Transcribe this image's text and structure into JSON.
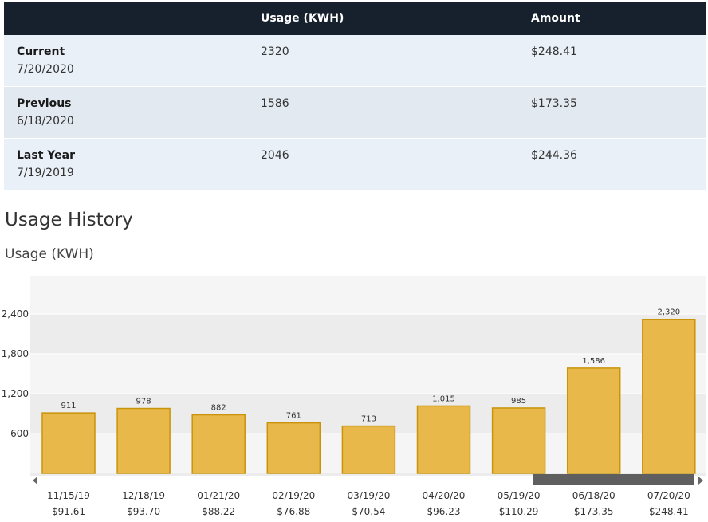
{
  "summary": {
    "headers": [
      "Usage (KWH)",
      "Amount"
    ],
    "rows": [
      {
        "label": "Current",
        "date": "7/20/2020",
        "usage": "2320",
        "amount": "$248.41"
      },
      {
        "label": "Previous",
        "date": "6/18/2020",
        "usage": "1586",
        "amount": "$173.35"
      },
      {
        "label": "Last Year",
        "date": "7/19/2019",
        "usage": "2046",
        "amount": "$244.36"
      }
    ]
  },
  "section_title": "Usage History",
  "chart_title": "Usage (KWH)",
  "colors": {
    "bar_fill": "#e8b84a",
    "bar_stroke": "#c9940a",
    "plot_band_dark": "#ececec",
    "plot_band_light": "#f5f5f5",
    "header_bg": "#17202d",
    "scrollbar": "#5f5f5f"
  },
  "icons": {
    "scroll_left": "left-arrow-icon",
    "scroll_right": "right-arrow-icon"
  },
  "chart_data": {
    "type": "bar",
    "categories": [
      "11/15/19",
      "12/18/19",
      "01/21/20",
      "02/19/20",
      "03/19/20",
      "04/20/20",
      "05/19/20",
      "06/18/20",
      "07/20/20"
    ],
    "amounts": [
      "$91.61",
      "$93.70",
      "$88.22",
      "$76.88",
      "$70.54",
      "$96.23",
      "$110.29",
      "$173.35",
      "$248.41"
    ],
    "values": [
      911,
      978,
      882,
      761,
      713,
      1015,
      985,
      1586,
      2320
    ],
    "value_labels": [
      "911",
      "978",
      "882",
      "761",
      "713",
      "1,015",
      "985",
      "1,586",
      "2,320"
    ],
    "yticks": [
      600,
      1200,
      1800,
      2400
    ],
    "ytick_labels": [
      "600",
      "1,200",
      "1,800",
      "2,400"
    ],
    "ylim": [
      0,
      3000
    ],
    "grid": true
  }
}
